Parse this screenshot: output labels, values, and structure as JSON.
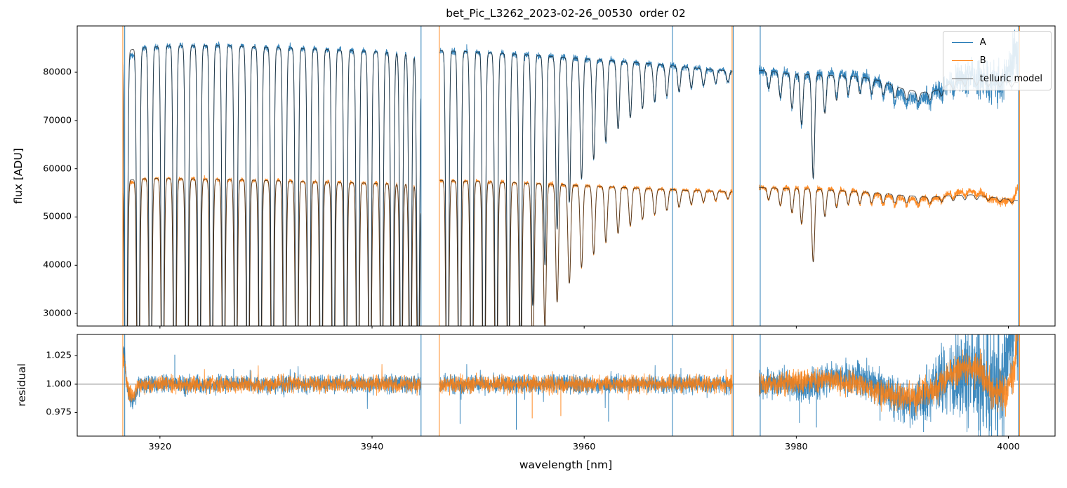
{
  "chart_data": {
    "type": "line",
    "title": "bet_Pic_L3262_2023-02-26_00530  order 02",
    "xlabel": "wavelength [nm]",
    "xlim": [
      3912.2,
      4004.4
    ],
    "xticks": [
      3920,
      3940,
      3960,
      3980,
      4000
    ],
    "xtick_labels": [
      "3920",
      "3940",
      "3960",
      "3980",
      "4000"
    ],
    "panels": [
      {
        "name": "flux",
        "ylabel": "flux [ADU]",
        "ylim": [
          27400,
          89600
        ],
        "yticks": [
          30000,
          40000,
          50000,
          60000,
          70000,
          80000
        ],
        "ytick_labels": [
          "30000",
          "40000",
          "50000",
          "60000",
          "70000",
          "80000"
        ]
      },
      {
        "name": "residual",
        "ylabel": "residual",
        "ylim": [
          0.9543,
          1.0438
        ],
        "yticks": [
          0.975,
          1.0,
          1.025
        ],
        "ytick_labels": [
          "0.975",
          "1.000",
          "1.025"
        ],
        "hline": 1.0
      }
    ],
    "legend": [
      {
        "label": "A",
        "color": "#1f77b4"
      },
      {
        "label": "B",
        "color": "#ff7f0e"
      },
      {
        "label": "telluric model",
        "color": "#555555"
      }
    ],
    "colors": {
      "A": "#1f77b4",
      "B": "#ff7f0e",
      "model": "#1b1b1b",
      "frame": "#000000",
      "hline": "#808080"
    },
    "segments": [
      [
        3916.5,
        3944.6
      ],
      [
        3946.4,
        3974.0
      ],
      [
        3976.5,
        4000.9
      ]
    ],
    "continuum_A": [
      [
        3916.5,
        84300
      ],
      [
        3918,
        85000
      ],
      [
        3921,
        85500
      ],
      [
        3925,
        85600
      ],
      [
        3930,
        85200
      ],
      [
        3935,
        84800
      ],
      [
        3940,
        84300
      ],
      [
        3944.6,
        83700
      ],
      [
        3946.4,
        84500
      ],
      [
        3950,
        84200
      ],
      [
        3955,
        83600
      ],
      [
        3960,
        82800
      ],
      [
        3965,
        82000
      ],
      [
        3970,
        81000
      ],
      [
        3974,
        80200
      ],
      [
        3976.5,
        80400
      ],
      [
        3980,
        79600
      ],
      [
        3983,
        79400
      ],
      [
        3986,
        79100
      ],
      [
        3988,
        78200
      ],
      [
        3990,
        76600
      ],
      [
        3991.8,
        75800
      ],
      [
        3993.2,
        76200
      ],
      [
        3995,
        78200
      ],
      [
        3996.5,
        78700
      ],
      [
        3998.5,
        78100
      ],
      [
        4000.9,
        77900
      ]
    ],
    "continuum_B": [
      [
        3916.5,
        57600
      ],
      [
        3919,
        58000
      ],
      [
        3923,
        57900
      ],
      [
        3928,
        57700
      ],
      [
        3933,
        57400
      ],
      [
        3938,
        57100
      ],
      [
        3944.6,
        56800
      ],
      [
        3946.4,
        57600
      ],
      [
        3951,
        57300
      ],
      [
        3956,
        56900
      ],
      [
        3961,
        56400
      ],
      [
        3966,
        55900
      ],
      [
        3970,
        55500
      ],
      [
        3974,
        55300
      ],
      [
        3976.5,
        56100
      ],
      [
        3980,
        55900
      ],
      [
        3984,
        55500
      ],
      [
        3987,
        55100
      ],
      [
        3990,
        54500
      ],
      [
        3992.5,
        54100
      ],
      [
        3994.5,
        54400
      ],
      [
        3996.5,
        54600
      ],
      [
        3998.5,
        54100
      ],
      [
        4000.9,
        53400
      ]
    ],
    "telluric_lines": [
      [
        3916.8,
        1
      ],
      [
        3917.95,
        1
      ],
      [
        3919.1,
        1
      ],
      [
        3920.25,
        1
      ],
      [
        3921.4,
        1
      ],
      [
        3922.55,
        1
      ],
      [
        3923.7,
        1
      ],
      [
        3924.85,
        1
      ],
      [
        3926.0,
        1
      ],
      [
        3927.15,
        1
      ],
      [
        3928.3,
        1
      ],
      [
        3929.45,
        1
      ],
      [
        3930.6,
        1
      ],
      [
        3931.75,
        1
      ],
      [
        3932.9,
        1
      ],
      [
        3934.05,
        1
      ],
      [
        3935.2,
        1
      ],
      [
        3936.35,
        1
      ],
      [
        3937.5,
        1
      ],
      [
        3938.65,
        1
      ],
      [
        3939.8,
        0.98
      ],
      [
        3940.9,
        0.95
      ],
      [
        3941.9,
        0.9
      ],
      [
        3942.75,
        0.86
      ],
      [
        3943.6,
        0.82
      ],
      [
        3944.35,
        0.8
      ],
      [
        3947.1,
        1
      ],
      [
        3948.25,
        1
      ],
      [
        3949.4,
        1
      ],
      [
        3950.55,
        0.99
      ],
      [
        3951.7,
        0.93
      ],
      [
        3952.85,
        0.84
      ],
      [
        3954.0,
        0.73
      ],
      [
        3955.15,
        0.62
      ],
      [
        3956.3,
        0.52
      ],
      [
        3957.45,
        0.43
      ],
      [
        3958.6,
        0.36
      ],
      [
        3959.75,
        0.3
      ],
      [
        3960.9,
        0.25
      ],
      [
        3962.05,
        0.205
      ],
      [
        3963.2,
        0.17
      ],
      [
        3964.35,
        0.14
      ],
      [
        3965.5,
        0.115
      ],
      [
        3966.65,
        0.095
      ],
      [
        3967.8,
        0.078
      ],
      [
        3968.95,
        0.064
      ],
      [
        3970.1,
        0.052
      ],
      [
        3971.25,
        0.043
      ],
      [
        3972.4,
        0.035
      ],
      [
        3973.55,
        0.029
      ],
      [
        3977.4,
        0.045
      ],
      [
        3978.5,
        0.065
      ],
      [
        3979.6,
        0.09
      ],
      [
        3980.5,
        0.13
      ],
      [
        3981.6,
        0.27
      ],
      [
        3982.7,
        0.1
      ],
      [
        3983.8,
        0.065
      ],
      [
        3984.9,
        0.05
      ],
      [
        3986.0,
        0.045
      ],
      [
        3987.1,
        0.04
      ],
      [
        3988.2,
        0.035
      ],
      [
        3989.3,
        0.032
      ],
      [
        3990.4,
        0.028
      ],
      [
        3991.5,
        0.026
      ],
      [
        3992.6,
        0.024
      ],
      [
        3993.7,
        0.022
      ],
      [
        3994.8,
        0.02
      ],
      [
        3995.9,
        0.018
      ],
      [
        3997.0,
        0.016
      ],
      [
        3998.1,
        0.015
      ],
      [
        3999.2,
        0.014
      ],
      [
        4000.3,
        0.013
      ]
    ],
    "line_profile": {
      "sigma": 0.18,
      "power": 2.2
    },
    "residual": {
      "amp_base_A": 0.0042,
      "amp_base_B": 0.004,
      "edge_A": {
        "up": 0.032,
        "x_up": 3916.6,
        "w_up": 0.18,
        "down": 0.014,
        "x_down": 3917.4,
        "w_down": 0.45
      },
      "edge_B": {
        "up": 0.022,
        "x_up": 3916.6,
        "w_up": 0.18,
        "down": 0.01,
        "x_down": 3917.4,
        "w_down": 0.45
      },
      "wave_A": [
        [
          3976.5,
          0.0
        ],
        [
          3979,
          0.001
        ],
        [
          3981,
          -0.003
        ],
        [
          3983,
          0.004
        ],
        [
          3985,
          0.007
        ],
        [
          3986.5,
          0.004
        ],
        [
          3988,
          -0.004
        ],
        [
          3989.5,
          -0.013
        ],
        [
          3991,
          -0.016
        ],
        [
          3992.3,
          -0.01
        ],
        [
          3993.5,
          0.0
        ],
        [
          3995,
          0.008
        ],
        [
          3996.5,
          0.01
        ],
        [
          3998,
          0.004
        ],
        [
          3999.5,
          0.002
        ],
        [
          4000.9,
          0.01
        ]
      ],
      "wave_B": [
        [
          3976.5,
          0.0
        ],
        [
          3980,
          0.002
        ],
        [
          3983,
          0.004
        ],
        [
          3985.5,
          0.002
        ],
        [
          3987.5,
          -0.006
        ],
        [
          3989.5,
          -0.011
        ],
        [
          3991.5,
          -0.01
        ],
        [
          3993,
          -0.004
        ],
        [
          3994.5,
          0.008
        ],
        [
          3996,
          0.016
        ],
        [
          3997.2,
          0.013
        ],
        [
          3998.5,
          -0.004
        ],
        [
          3999.5,
          -0.009
        ],
        [
          4000.3,
          0.004
        ],
        [
          4000.9,
          0.022
        ]
      ],
      "amp_right_A": [
        [
          3976.5,
          0.006
        ],
        [
          3985,
          0.008
        ],
        [
          3990,
          0.01
        ],
        [
          3993,
          0.013
        ],
        [
          3995,
          0.02
        ],
        [
          3997,
          0.027
        ],
        [
          4000.9,
          0.032
        ]
      ],
      "amp_right_B": [
        [
          3976.5,
          0.005
        ],
        [
          3990,
          0.0065
        ],
        [
          3995,
          0.008
        ],
        [
          4000.9,
          0.01
        ]
      ]
    },
    "end_drift": {
      "A_start": 3999,
      "A_coef": 0.13,
      "A_scale": 1.9,
      "B_start": 4000.4,
      "B_coef": 0.05,
      "B_scale": 0.5
    },
    "spikes": [
      {
        "x": 3916.5,
        "s": "B"
      },
      {
        "x": 3916.68,
        "s": "A"
      },
      {
        "x": 3944.62,
        "s": "A"
      },
      {
        "x": 3946.34,
        "s": "B"
      },
      {
        "x": 3968.32,
        "s": "A"
      },
      {
        "x": 3973.95,
        "s": "B"
      },
      {
        "x": 3974.05,
        "s": "A"
      },
      {
        "x": 3976.6,
        "s": "A"
      },
      {
        "x": 4000.95,
        "s": "A"
      },
      {
        "x": 4001.05,
        "s": "B"
      }
    ],
    "residual_spikes": [
      {
        "x": 3921.4,
        "s": "A",
        "v": 1.026
      },
      {
        "x": 3948.3,
        "s": "A",
        "v": 0.965
      },
      {
        "x": 3953.6,
        "s": "A",
        "v": 0.96
      },
      {
        "x": 3955.1,
        "s": "B",
        "v": 0.97
      },
      {
        "x": 3957.8,
        "s": "B",
        "v": 0.972
      },
      {
        "x": 3962.3,
        "s": "A",
        "v": 0.967
      },
      {
        "x": 3980.3,
        "s": "A",
        "v": 0.966
      },
      {
        "x": 3981.9,
        "s": "A",
        "v": 0.962
      },
      {
        "x": 3987.9,
        "s": "A",
        "v": 0.968
      },
      {
        "x": 3992.0,
        "s": "A",
        "v": 0.958
      }
    ]
  }
}
